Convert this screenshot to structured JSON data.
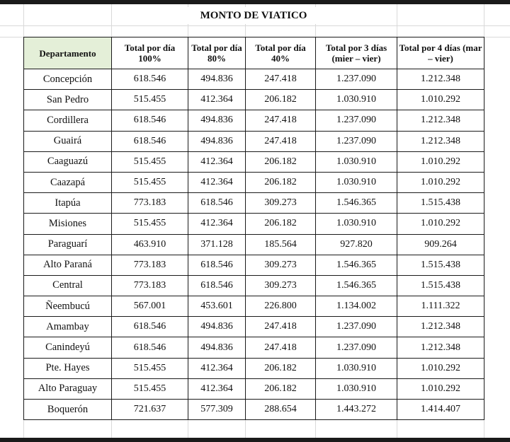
{
  "title": "MONTO DE VIATICO",
  "headers": [
    "Departamento",
    "Total por día 100%",
    "Total por día 80%",
    "Total por día 40%",
    "Total por 3 días (mier – vier)",
    "Total por 4 días (mar – vier)"
  ],
  "rows": [
    {
      "departamento": "Concepción",
      "dia100": "618.546",
      "dia80": "494.836",
      "dia40": "247.418",
      "tres_dias": "1.237.090",
      "cuatro_dias": "1.212.348"
    },
    {
      "departamento": "San Pedro",
      "dia100": "515.455",
      "dia80": "412.364",
      "dia40": "206.182",
      "tres_dias": "1.030.910",
      "cuatro_dias": "1.010.292"
    },
    {
      "departamento": "Cordillera",
      "dia100": "618.546",
      "dia80": "494.836",
      "dia40": "247.418",
      "tres_dias": "1.237.090",
      "cuatro_dias": "1.212.348"
    },
    {
      "departamento": "Guairá",
      "dia100": "618.546",
      "dia80": "494.836",
      "dia40": "247.418",
      "tres_dias": "1.237.090",
      "cuatro_dias": "1.212.348"
    },
    {
      "departamento": "Caaguazú",
      "dia100": "515.455",
      "dia80": "412.364",
      "dia40": "206.182",
      "tres_dias": "1.030.910",
      "cuatro_dias": "1.010.292"
    },
    {
      "departamento": "Caazapá",
      "dia100": "515.455",
      "dia80": "412.364",
      "dia40": "206.182",
      "tres_dias": "1.030.910",
      "cuatro_dias": "1.010.292"
    },
    {
      "departamento": "Itapúa",
      "dia100": "773.183",
      "dia80": "618.546",
      "dia40": "309.273",
      "tres_dias": "1.546.365",
      "cuatro_dias": "1.515.438"
    },
    {
      "departamento": "Misiones",
      "dia100": "515.455",
      "dia80": "412.364",
      "dia40": "206.182",
      "tres_dias": "1.030.910",
      "cuatro_dias": "1.010.292"
    },
    {
      "departamento": "Paraguarí",
      "dia100": "463.910",
      "dia80": "371.128",
      "dia40": "185.564",
      "tres_dias": "927.820",
      "cuatro_dias": "909.264"
    },
    {
      "departamento": "Alto Paraná",
      "dia100": "773.183",
      "dia80": "618.546",
      "dia40": "309.273",
      "tres_dias": "1.546.365",
      "cuatro_dias": "1.515.438"
    },
    {
      "departamento": "Central",
      "dia100": "773.183",
      "dia80": "618.546",
      "dia40": "309.273",
      "tres_dias": "1.546.365",
      "cuatro_dias": "1.515.438"
    },
    {
      "departamento": "Ñeembucú",
      "dia100": "567.001",
      "dia80": "453.601",
      "dia40": "226.800",
      "tres_dias": "1.134.002",
      "cuatro_dias": "1.111.322"
    },
    {
      "departamento": "Amambay",
      "dia100": "618.546",
      "dia80": "494.836",
      "dia40": "247.418",
      "tres_dias": "1.237.090",
      "cuatro_dias": "1.212.348"
    },
    {
      "departamento": "Canindeyú",
      "dia100": "618.546",
      "dia80": "494.836",
      "dia40": "247.418",
      "tres_dias": "1.237.090",
      "cuatro_dias": "1.212.348"
    },
    {
      "departamento": "Pte. Hayes",
      "dia100": "515.455",
      "dia80": "412.364",
      "dia40": "206.182",
      "tres_dias": "1.030.910",
      "cuatro_dias": "1.010.292"
    },
    {
      "departamento": "Alto Paraguay",
      "dia100": "515.455",
      "dia80": "412.364",
      "dia40": "206.182",
      "tres_dias": "1.030.910",
      "cuatro_dias": "1.010.292"
    },
    {
      "departamento": "Boquerón",
      "dia100": "721.637",
      "dia80": "577.309",
      "dia40": "288.654",
      "tres_dias": "1.443.272",
      "cuatro_dias": "1.414.407"
    }
  ],
  "colors": {
    "header_dept_fill": "#e4efd8",
    "border": "#1a1a1a",
    "sheet_grid": "#d9d9d9"
  }
}
